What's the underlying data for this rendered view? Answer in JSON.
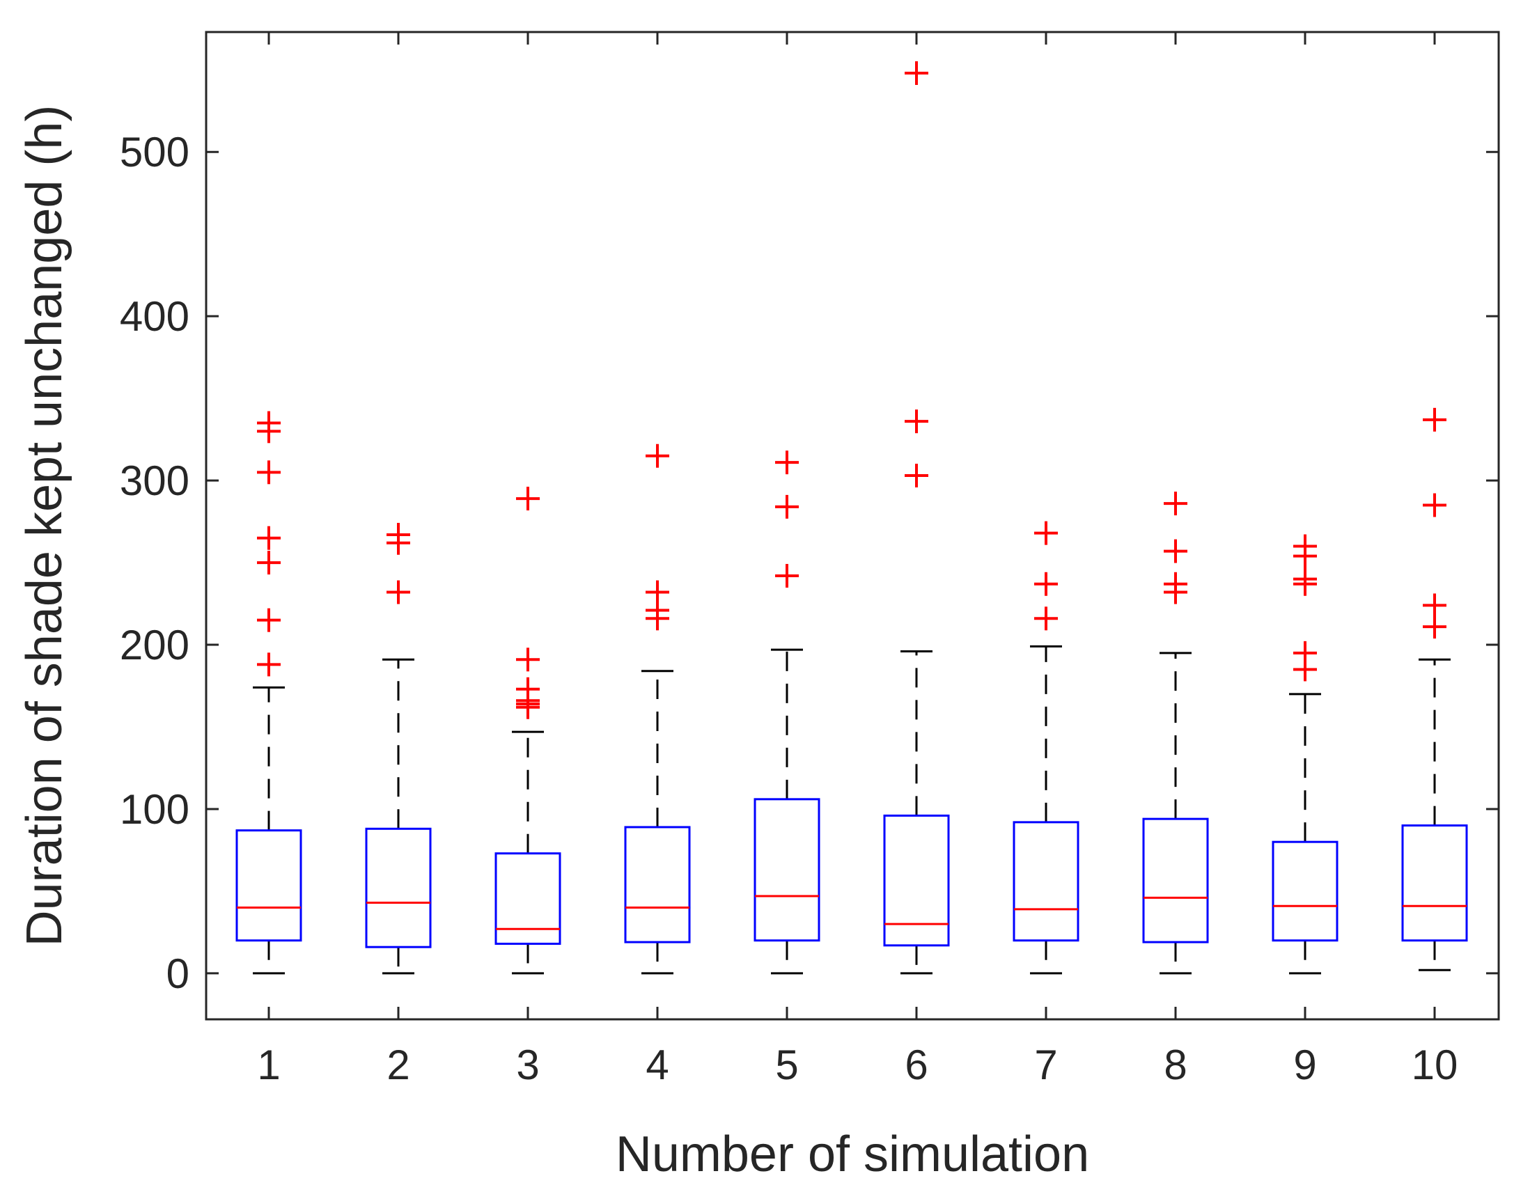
{
  "chart_data": {
    "type": "boxplot",
    "xlabel": "Number of simulation",
    "ylabel": "Duration of shade kept unchanged (h)",
    "ylim": [
      -28,
      573
    ],
    "yticks": [
      0,
      100,
      200,
      300,
      400,
      500
    ],
    "yticklabels": [
      "0",
      "100",
      "200",
      "300",
      "400",
      "500"
    ],
    "categories": [
      "1",
      "2",
      "3",
      "4",
      "5",
      "6",
      "7",
      "8",
      "9",
      "10"
    ],
    "boxes": [
      {
        "whisker_low": 0,
        "q1": 20,
        "median": 40,
        "q3": 87,
        "whisker_high": 174,
        "outliers": [
          188,
          215,
          250,
          265,
          305,
          330,
          335
        ]
      },
      {
        "whisker_low": 0,
        "q1": 16,
        "median": 43,
        "q3": 88,
        "whisker_high": 191,
        "outliers": [
          232,
          262,
          267
        ]
      },
      {
        "whisker_low": 0,
        "q1": 18,
        "median": 27,
        "q3": 73,
        "whisker_high": 147,
        "outliers": [
          162,
          164,
          166,
          173,
          191,
          289
        ]
      },
      {
        "whisker_low": 0,
        "q1": 19,
        "median": 40,
        "q3": 89,
        "whisker_high": 184,
        "outliers": [
          216,
          221,
          232,
          315
        ]
      },
      {
        "whisker_low": 0,
        "q1": 20,
        "median": 47,
        "q3": 106,
        "whisker_high": 197,
        "outliers": [
          242,
          284,
          311
        ]
      },
      {
        "whisker_low": 0,
        "q1": 17,
        "median": 30,
        "q3": 96,
        "whisker_high": 196,
        "outliers": [
          303,
          336,
          548
        ]
      },
      {
        "whisker_low": 0,
        "q1": 20,
        "median": 39,
        "q3": 92,
        "whisker_high": 199,
        "outliers": [
          216,
          237,
          268
        ]
      },
      {
        "whisker_low": 0,
        "q1": 19,
        "median": 46,
        "q3": 94,
        "whisker_high": 195,
        "outliers": [
          232,
          237,
          257,
          286
        ]
      },
      {
        "whisker_low": 0,
        "q1": 20,
        "median": 41,
        "q3": 80,
        "whisker_high": 170,
        "outliers": [
          185,
          195,
          237,
          240,
          254,
          260
        ]
      },
      {
        "whisker_low": 2,
        "q1": 20,
        "median": 41,
        "q3": 90,
        "whisker_high": 191,
        "outliers": [
          211,
          224,
          285,
          337
        ]
      }
    ],
    "colors": {
      "box": "#0000ff",
      "median": "#ff0000",
      "outlier": "#ff0000",
      "whisker": "#000000",
      "axis": "#262626"
    }
  }
}
